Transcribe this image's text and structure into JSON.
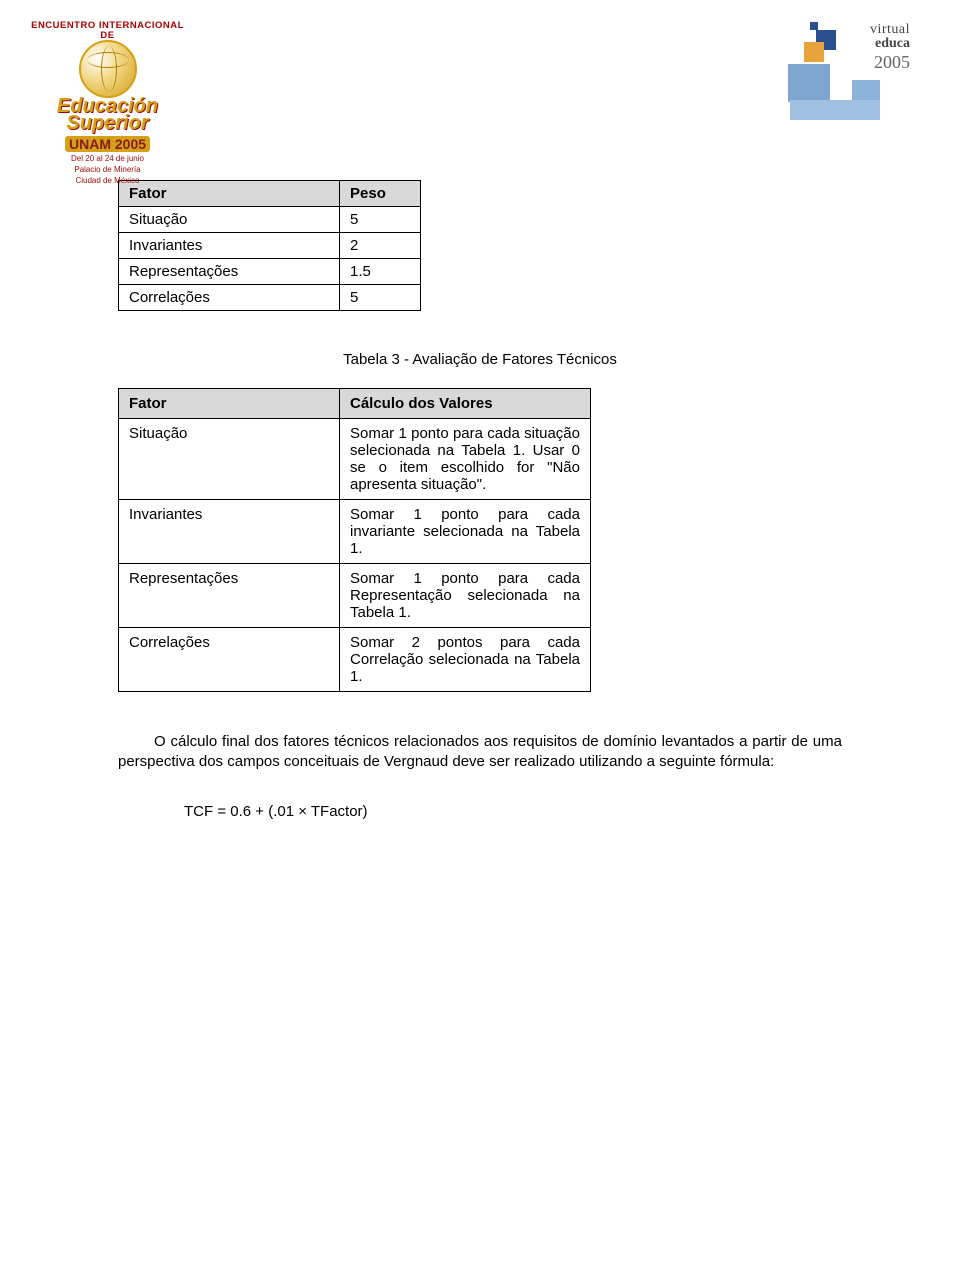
{
  "logo_left": {
    "arc_text": "ENCUENTRO INTERNACIONAL DE",
    "title_line1": "Educación",
    "title_line2": "Superior",
    "unam": "UNAM 2005",
    "date_line": "Del 20 al 24 de junio",
    "place_line1": "Palacio de Minería",
    "place_line2": "Ciudad de México"
  },
  "logo_right": {
    "virtual": "virtual",
    "educa": "educa",
    "year": "2005"
  },
  "table1": {
    "headers": {
      "fator": "Fator",
      "peso": "Peso"
    },
    "rows": [
      {
        "fator": "Situação",
        "peso": "5"
      },
      {
        "fator": "Invariantes",
        "peso": "2"
      },
      {
        "fator": "Representações",
        "peso": "1.5"
      },
      {
        "fator": "Correlações",
        "peso": "5"
      }
    ]
  },
  "caption": "Tabela 3 - Avaliação de Fatores Técnicos",
  "table2": {
    "headers": {
      "fator": "Fator",
      "calc": "Cálculo dos Valores"
    },
    "rows": [
      {
        "fator": "Situação",
        "calc": "Somar 1 ponto para cada situação selecionada na Tabela 1. Usar 0 se o item escolhido for \"Não apresenta situação\"."
      },
      {
        "fator": "Invariantes",
        "calc": "Somar 1 ponto para cada invariante selecionada na Tabela 1."
      },
      {
        "fator": "Representações",
        "calc": "Somar 1 ponto para cada Representação selecionada na Tabela 1."
      },
      {
        "fator": "Correlações",
        "calc": "Somar 2 pontos para cada Correlação selecionada na Tabela 1."
      }
    ]
  },
  "paragraph": "O cálculo final dos fatores técnicos relacionados aos requisitos de domínio levantados a partir de uma perspectiva dos campos conceituais de Vergnaud deve ser realizado utilizando a seguinte fórmula:",
  "formula": "TCF = 0.6 + (.01 × TFactor)"
}
